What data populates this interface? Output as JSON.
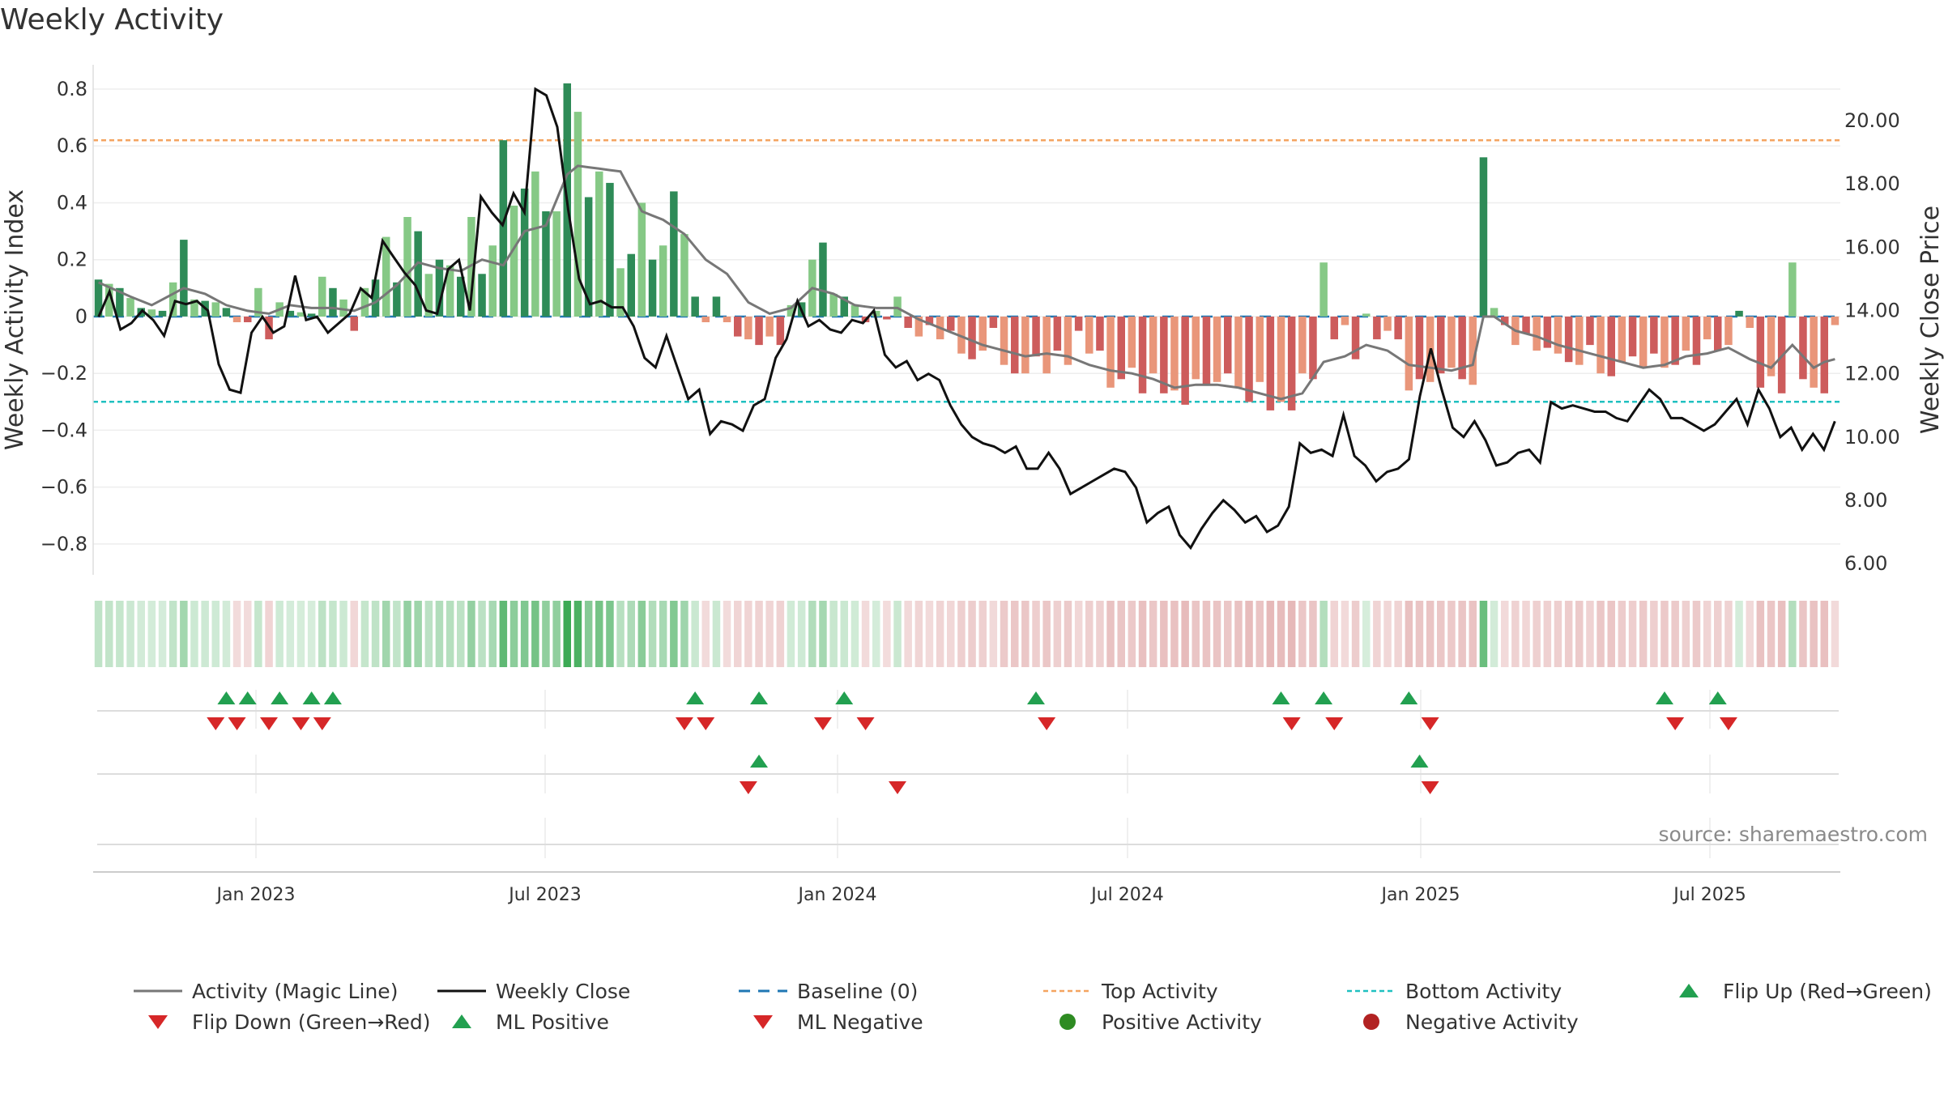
{
  "chart_data": {
    "type": "bar+line",
    "title": "Weekly Activity",
    "ylabel_left": "Weekly Activity Index",
    "ylabel_right": "Weekly Close Price",
    "left_ticks": [
      "0.8",
      "0.6",
      "0.4",
      "0.2",
      "0",
      "−0.2",
      "−0.4",
      "−0.6",
      "−0.8"
    ],
    "right_ticks": [
      "20.00",
      "18.00",
      "16.00",
      "14.00",
      "12.00",
      "10.00",
      "8.00",
      "6.00"
    ],
    "x_ticks": [
      "Jan 2023",
      "Jul 2023",
      "Jan 2024",
      "Jul 2024",
      "Jan 2025",
      "Jul 2025"
    ],
    "ylim_left": [
      -0.88,
      0.8
    ],
    "ylim_right": [
      5.9,
      21.0
    ],
    "top_activity": 0.62,
    "bottom_activity": -0.3,
    "baseline": 0,
    "activity_anchors": [
      [
        0,
        0.13
      ],
      [
        2,
        0.1
      ],
      [
        4,
        0.03
      ],
      [
        6,
        0.02
      ],
      [
        7,
        0.12
      ],
      [
        8,
        0.27
      ],
      [
        9,
        0.06
      ],
      [
        11,
        0.05
      ],
      [
        12,
        0.03
      ],
      [
        13,
        -0.02
      ],
      [
        14,
        -0.02
      ],
      [
        15,
        0.1
      ],
      [
        16,
        -0.08
      ],
      [
        17,
        0.05
      ],
      [
        18,
        0.02
      ],
      [
        20,
        0.01
      ],
      [
        21,
        0.14
      ],
      [
        23,
        0.06
      ],
      [
        24,
        -0.05
      ],
      [
        25,
        0.1
      ],
      [
        26,
        0.13
      ],
      [
        27,
        0.28
      ],
      [
        28,
        0.12
      ],
      [
        29,
        0.35
      ],
      [
        30,
        0.3
      ],
      [
        31,
        0.15
      ],
      [
        32,
        0.2
      ],
      [
        33,
        0.18
      ],
      [
        34,
        0.14
      ],
      [
        35,
        0.35
      ],
      [
        36,
        0.15
      ],
      [
        37,
        0.25
      ],
      [
        38,
        0.62
      ],
      [
        39,
        0.39
      ],
      [
        40,
        0.45
      ],
      [
        41,
        0.51
      ],
      [
        42,
        0.37
      ],
      [
        43,
        0.37
      ],
      [
        44,
        0.82
      ],
      [
        45,
        0.72
      ],
      [
        46,
        0.42
      ],
      [
        47,
        0.51
      ],
      [
        48,
        0.47
      ],
      [
        49,
        0.17
      ],
      [
        50,
        0.22
      ],
      [
        51,
        0.4
      ],
      [
        52,
        0.2
      ],
      [
        53,
        0.25
      ],
      [
        54,
        0.44
      ],
      [
        55,
        0.29
      ],
      [
        56,
        0.07
      ],
      [
        57,
        -0.02
      ],
      [
        58,
        0.07
      ],
      [
        59,
        -0.02
      ],
      [
        60,
        -0.07
      ],
      [
        61,
        -0.08
      ],
      [
        62,
        -0.1
      ],
      [
        63,
        -0.07
      ],
      [
        64,
        -0.1
      ],
      [
        65,
        0.04
      ],
      [
        66,
        0.05
      ],
      [
        67,
        0.2
      ],
      [
        68,
        0.26
      ],
      [
        69,
        0.08
      ],
      [
        70,
        0.07
      ],
      [
        71,
        0.04
      ],
      [
        72,
        -0.02
      ],
      [
        73,
        0.02
      ],
      [
        74,
        -0.01
      ],
      [
        75,
        0.07
      ],
      [
        76,
        -0.04
      ],
      [
        77,
        -0.07
      ],
      [
        78,
        -0.03
      ],
      [
        79,
        -0.08
      ],
      [
        80,
        -0.05
      ],
      [
        81,
        -0.13
      ],
      [
        82,
        -0.15
      ],
      [
        83,
        -0.12
      ],
      [
        84,
        -0.04
      ],
      [
        85,
        -0.17
      ],
      [
        86,
        -0.2
      ],
      [
        87,
        -0.2
      ],
      [
        88,
        -0.14
      ],
      [
        89,
        -0.2
      ],
      [
        90,
        -0.12
      ],
      [
        91,
        -0.17
      ],
      [
        92,
        -0.05
      ],
      [
        93,
        -0.13
      ],
      [
        94,
        -0.12
      ],
      [
        95,
        -0.25
      ],
      [
        96,
        -0.22
      ],
      [
        97,
        -0.18
      ],
      [
        98,
        -0.27
      ],
      [
        99,
        -0.2
      ],
      [
        100,
        -0.27
      ],
      [
        101,
        -0.26
      ],
      [
        102,
        -0.31
      ],
      [
        103,
        -0.22
      ],
      [
        104,
        -0.24
      ],
      [
        105,
        -0.23
      ],
      [
        106,
        -0.2
      ],
      [
        107,
        -0.25
      ],
      [
        108,
        -0.3
      ],
      [
        109,
        -0.23
      ],
      [
        110,
        -0.33
      ],
      [
        111,
        -0.3
      ],
      [
        112,
        -0.33
      ],
      [
        113,
        -0.2
      ],
      [
        114,
        -0.22
      ],
      [
        115,
        0.19
      ],
      [
        116,
        -0.08
      ],
      [
        117,
        -0.03
      ],
      [
        118,
        -0.15
      ],
      [
        119,
        0.01
      ],
      [
        120,
        -0.08
      ],
      [
        121,
        -0.05
      ],
      [
        122,
        -0.08
      ],
      [
        123,
        -0.26
      ],
      [
        124,
        -0.22
      ],
      [
        125,
        -0.23
      ],
      [
        126,
        -0.2
      ],
      [
        127,
        -0.18
      ],
      [
        128,
        -0.22
      ],
      [
        129,
        -0.24
      ],
      [
        130,
        0.56
      ],
      [
        131,
        0.03
      ],
      [
        132,
        -0.03
      ],
      [
        133,
        -0.1
      ],
      [
        134,
        -0.06
      ],
      [
        135,
        -0.12
      ],
      [
        136,
        -0.11
      ],
      [
        137,
        -0.13
      ],
      [
        138,
        -0.16
      ],
      [
        139,
        -0.17
      ],
      [
        140,
        -0.1
      ],
      [
        141,
        -0.2
      ],
      [
        142,
        -0.21
      ],
      [
        143,
        -0.16
      ],
      [
        144,
        -0.14
      ],
      [
        145,
        -0.18
      ],
      [
        146,
        -0.13
      ],
      [
        147,
        -0.18
      ],
      [
        148,
        -0.17
      ],
      [
        149,
        -0.12
      ],
      [
        150,
        -0.17
      ],
      [
        151,
        -0.08
      ],
      [
        152,
        -0.12
      ],
      [
        153,
        -0.1
      ],
      [
        154,
        0.02
      ],
      [
        155,
        -0.04
      ],
      [
        156,
        -0.25
      ],
      [
        157,
        -0.21
      ],
      [
        158,
        -0.27
      ],
      [
        159,
        0.19
      ],
      [
        160,
        -0.22
      ],
      [
        161,
        -0.25
      ],
      [
        162,
        -0.27
      ],
      [
        163,
        -0.03
      ]
    ],
    "ml_anchors": [
      [
        0,
        0.12
      ],
      [
        3,
        0.07
      ],
      [
        5,
        0.04
      ],
      [
        8,
        0.1
      ],
      [
        10,
        0.08
      ],
      [
        12,
        0.04
      ],
      [
        14,
        0.02
      ],
      [
        16,
        0.01
      ],
      [
        18,
        0.04
      ],
      [
        20,
        0.03
      ],
      [
        22,
        0.03
      ],
      [
        24,
        0.02
      ],
      [
        26,
        0.05
      ],
      [
        28,
        0.11
      ],
      [
        30,
        0.19
      ],
      [
        32,
        0.17
      ],
      [
        34,
        0.16
      ],
      [
        36,
        0.2
      ],
      [
        38,
        0.18
      ],
      [
        40,
        0.3
      ],
      [
        42,
        0.32
      ],
      [
        44,
        0.5
      ],
      [
        45,
        0.53
      ],
      [
        47,
        0.52
      ],
      [
        49,
        0.51
      ],
      [
        51,
        0.37
      ],
      [
        53,
        0.34
      ],
      [
        55,
        0.29
      ],
      [
        57,
        0.2
      ],
      [
        59,
        0.15
      ],
      [
        61,
        0.05
      ],
      [
        63,
        0.01
      ],
      [
        65,
        0.03
      ],
      [
        67,
        0.1
      ],
      [
        69,
        0.08
      ],
      [
        71,
        0.04
      ],
      [
        73,
        0.03
      ],
      [
        75,
        0.03
      ],
      [
        77,
        -0.01
      ],
      [
        79,
        -0.04
      ],
      [
        81,
        -0.07
      ],
      [
        83,
        -0.1
      ],
      [
        85,
        -0.12
      ],
      [
        87,
        -0.14
      ],
      [
        89,
        -0.13
      ],
      [
        91,
        -0.14
      ],
      [
        93,
        -0.17
      ],
      [
        95,
        -0.19
      ],
      [
        97,
        -0.2
      ],
      [
        99,
        -0.22
      ],
      [
        101,
        -0.25
      ],
      [
        103,
        -0.24
      ],
      [
        105,
        -0.24
      ],
      [
        107,
        -0.25
      ],
      [
        109,
        -0.27
      ],
      [
        111,
        -0.29
      ],
      [
        113,
        -0.27
      ],
      [
        115,
        -0.16
      ],
      [
        117,
        -0.14
      ],
      [
        119,
        -0.1
      ],
      [
        121,
        -0.12
      ],
      [
        123,
        -0.17
      ],
      [
        125,
        -0.18
      ],
      [
        127,
        -0.19
      ],
      [
        129,
        -0.17
      ],
      [
        130,
        0.0
      ],
      [
        131,
        0.0
      ],
      [
        133,
        -0.05
      ],
      [
        135,
        -0.07
      ],
      [
        137,
        -0.1
      ],
      [
        139,
        -0.12
      ],
      [
        141,
        -0.14
      ],
      [
        143,
        -0.16
      ],
      [
        145,
        -0.18
      ],
      [
        147,
        -0.17
      ],
      [
        149,
        -0.14
      ],
      [
        151,
        -0.13
      ],
      [
        153,
        -0.11
      ],
      [
        155,
        -0.15
      ],
      [
        157,
        -0.18
      ],
      [
        159,
        -0.1
      ],
      [
        161,
        -0.18
      ],
      [
        162,
        -0.16
      ],
      [
        163,
        -0.15
      ]
    ],
    "close_anchors": [
      [
        0,
        13.8
      ],
      [
        1,
        14.6
      ],
      [
        2,
        13.4
      ],
      [
        3,
        13.6
      ],
      [
        4,
        14
      ],
      [
        5,
        13.7
      ],
      [
        6,
        13.2
      ],
      [
        7,
        14.3
      ],
      [
        8,
        14.2
      ],
      [
        9,
        14.3
      ],
      [
        10,
        14.0
      ],
      [
        11,
        12.3
      ],
      [
        12,
        11.5
      ],
      [
        13,
        11.4
      ],
      [
        14,
        13.3
      ],
      [
        15,
        13.8
      ],
      [
        16,
        13.3
      ],
      [
        17,
        13.5
      ],
      [
        18,
        15.1
      ],
      [
        19,
        13.7
      ],
      [
        20,
        13.8
      ],
      [
        21,
        13.3
      ],
      [
        22,
        13.6
      ],
      [
        23,
        13.9
      ],
      [
        24,
        14.7
      ],
      [
        25,
        14.4
      ],
      [
        26,
        16.2
      ],
      [
        27,
        15.7
      ],
      [
        28,
        15.2
      ],
      [
        29,
        14.8
      ],
      [
        30,
        14
      ],
      [
        31,
        13.9
      ],
      [
        32,
        15.3
      ],
      [
        33,
        15.6
      ],
      [
        34,
        14
      ],
      [
        35,
        17.6
      ],
      [
        36,
        17.1
      ],
      [
        37,
        16.7
      ],
      [
        38,
        17.7
      ],
      [
        39,
        17.1
      ],
      [
        40,
        21.0
      ],
      [
        41,
        20.8
      ],
      [
        42,
        19.8
      ],
      [
        43,
        17.2
      ],
      [
        44,
        15.0
      ],
      [
        45,
        14.2
      ],
      [
        46,
        14.3
      ],
      [
        47,
        14.1
      ],
      [
        48,
        14.1
      ],
      [
        49,
        13.5
      ],
      [
        50,
        12.5
      ],
      [
        51,
        12.2
      ],
      [
        52,
        13.2
      ],
      [
        53,
        12.2
      ],
      [
        54,
        11.2
      ],
      [
        55,
        11.5
      ],
      [
        56,
        10.1
      ],
      [
        57,
        10.5
      ],
      [
        58,
        10.4
      ],
      [
        59,
        10.2
      ],
      [
        60,
        11.0
      ],
      [
        61,
        11.2
      ],
      [
        62,
        12.5
      ],
      [
        63,
        13.1
      ],
      [
        64,
        14.3
      ],
      [
        65,
        13.5
      ],
      [
        66,
        13.7
      ],
      [
        67,
        13.4
      ],
      [
        68,
        13.3
      ],
      [
        69,
        13.7
      ],
      [
        70,
        13.6
      ],
      [
        71,
        14
      ],
      [
        72,
        12.6
      ],
      [
        73,
        12.2
      ],
      [
        74,
        12.4
      ],
      [
        75,
        11.8
      ],
      [
        76,
        12.0
      ],
      [
        77,
        11.8
      ],
      [
        78,
        11.0
      ],
      [
        79,
        10.4
      ],
      [
        80,
        10.0
      ],
      [
        81,
        9.8
      ],
      [
        82,
        9.7
      ],
      [
        83,
        9.5
      ],
      [
        84,
        9.7
      ],
      [
        85,
        9.0
      ],
      [
        86,
        9.0
      ],
      [
        87,
        9.5
      ],
      [
        88,
        9.0
      ],
      [
        89,
        8.2
      ],
      [
        90,
        8.4
      ],
      [
        91,
        8.6
      ],
      [
        92,
        8.8
      ],
      [
        93,
        9.0
      ],
      [
        94,
        8.9
      ],
      [
        95,
        8.4
      ],
      [
        96,
        7.3
      ],
      [
        97,
        7.6
      ],
      [
        98,
        7.8
      ],
      [
        99,
        6.9
      ],
      [
        100,
        6.5
      ],
      [
        101,
        7.1
      ],
      [
        102,
        7.6
      ],
      [
        103,
        8
      ],
      [
        104,
        7.7
      ],
      [
        105,
        7.3
      ],
      [
        106,
        7.5
      ],
      [
        107,
        7.0
      ],
      [
        108,
        7.2
      ],
      [
        109,
        7.8
      ],
      [
        110,
        9.8
      ],
      [
        111,
        9.5
      ],
      [
        112,
        9.6
      ],
      [
        113,
        9.4
      ],
      [
        114,
        10.7
      ],
      [
        115,
        9.4
      ],
      [
        116,
        9.1
      ],
      [
        117,
        8.6
      ],
      [
        118,
        8.9
      ],
      [
        119,
        9.0
      ],
      [
        120,
        9.3
      ],
      [
        121,
        11.3
      ],
      [
        122,
        12.8
      ],
      [
        123,
        11.5
      ],
      [
        124,
        10.3
      ],
      [
        125,
        10.0
      ],
      [
        126,
        10.5
      ],
      [
        127,
        9.9
      ],
      [
        128,
        9.1
      ],
      [
        129,
        9.2
      ],
      [
        130,
        9.5
      ],
      [
        131,
        9.6
      ],
      [
        132,
        9.2
      ],
      [
        133,
        11.1
      ],
      [
        134,
        10.9
      ],
      [
        135,
        11
      ],
      [
        136,
        10.9
      ],
      [
        137,
        10.8
      ],
      [
        138,
        10.8
      ],
      [
        139,
        10.6
      ],
      [
        140,
        10.5
      ],
      [
        141,
        11.0
      ],
      [
        142,
        11.5
      ],
      [
        143,
        11.2
      ],
      [
        144,
        10.6
      ],
      [
        145,
        10.6
      ],
      [
        146,
        10.4
      ],
      [
        147,
        10.2
      ],
      [
        148,
        10.4
      ],
      [
        149,
        10.8
      ],
      [
        150,
        11.2
      ],
      [
        151,
        10.4
      ],
      [
        152,
        11.5
      ],
      [
        153,
        10.9
      ],
      [
        154,
        10.0
      ],
      [
        155,
        10.3
      ],
      [
        156,
        9.6
      ],
      [
        157,
        10.1
      ],
      [
        158,
        9.6
      ],
      [
        159,
        10.5
      ]
    ],
    "flip_up_row1": [
      12,
      14,
      17,
      20,
      22,
      56,
      62,
      70,
      88,
      111,
      115,
      123,
      147,
      152
    ],
    "flip_down_row1": [
      11,
      13,
      16,
      19,
      21,
      55,
      57,
      68,
      72,
      89,
      112,
      116,
      125,
      148,
      153
    ],
    "flip_up_row2": [
      62,
      124
    ],
    "flip_down_row2": [
      61,
      75,
      125
    ],
    "source": "source: sharemaestro.com",
    "legend": [
      {
        "label": "Activity (Magic Line)",
        "kind": "line",
        "color": "#777777"
      },
      {
        "label": "Weekly Close",
        "kind": "line",
        "color": "#111111"
      },
      {
        "label": "Baseline (0)",
        "kind": "dash",
        "color": "#1f77b4"
      },
      {
        "label": "Top Activity",
        "kind": "dot-line",
        "color": "#f4a460"
      },
      {
        "label": "Bottom Activity",
        "kind": "dot-line",
        "color": "#20c0c0"
      },
      {
        "label": "Flip Up (Red→Green)",
        "kind": "tri-up",
        "color": "#22a050"
      },
      {
        "label": "Flip Down (Green→Red)",
        "kind": "tri-down",
        "color": "#d62728"
      },
      {
        "label": "ML Positive",
        "kind": "tri-up",
        "color": "#22a050"
      },
      {
        "label": "ML Negative",
        "kind": "tri-down",
        "color": "#d62728"
      },
      {
        "label": "Positive Activity",
        "kind": "circle",
        "color": "#2e8b22"
      },
      {
        "label": "Negative Activity",
        "kind": "circle",
        "color": "#b22222"
      }
    ]
  },
  "colors": {
    "bar_pos_dark": "#2e8b57",
    "bar_pos_light": "#86c986",
    "bar_neg_dark": "#cd5c5c",
    "bar_neg_light": "#e9967a",
    "ml_line": "#777777",
    "close_line": "#111111",
    "baseline": "#1f77b4",
    "top_line": "#f4a460",
    "bottom_line": "#20c0c0",
    "up_marker": "#22a050",
    "down_marker": "#d62728"
  }
}
